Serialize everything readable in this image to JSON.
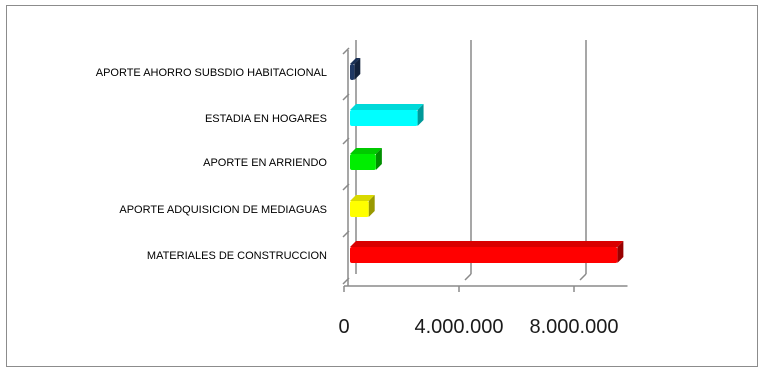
{
  "chart_data": {
    "type": "bar",
    "orientation": "horizontal",
    "style": "3d",
    "title": "",
    "xlabel": "",
    "ylabel": "",
    "categories": [
      "APORTE AHORRO SUBSDIO HABITACIONAL",
      "ESTADIA EN HOGARES",
      "APORTE EN ARRIENDO",
      "APORTE ADQUISICION DE MEDIAGUAS",
      "MATERIALES DE CONSTRUCCION"
    ],
    "values": [
      150000,
      2350000,
      900000,
      650000,
      9300000
    ],
    "colors": [
      "#1f3864",
      "#00ffff",
      "#00ee00",
      "#ffff00",
      "#ff0000"
    ],
    "xlim": [
      0,
      10000000
    ],
    "xticks": [
      0,
      4000000,
      8000000
    ],
    "xtick_labels": [
      "0",
      "4.000.000",
      "8.000.000"
    ],
    "grid": "vertical-major",
    "legend": "none"
  }
}
